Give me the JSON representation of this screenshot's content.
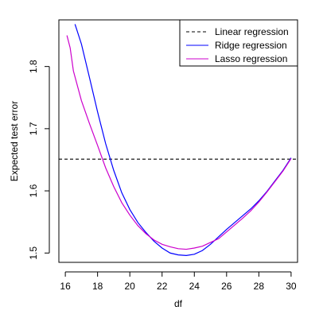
{
  "chart_data": {
    "type": "line",
    "title": "",
    "xlabel": "df",
    "ylabel": "Expected test error",
    "xlim": [
      15.6,
      30.4
    ],
    "ylim": [
      1.485,
      1.875
    ],
    "xticks": [
      16,
      18,
      20,
      22,
      24,
      26,
      28,
      30
    ],
    "yticks": [
      1.5,
      1.6,
      1.7,
      1.8
    ],
    "grid": false,
    "legend_position": "top-right",
    "series": [
      {
        "name": "Linear regression",
        "color": "#000000",
        "dash": "dashed",
        "x": [
          15.6,
          30.4
        ],
        "y": [
          1.651,
          1.651
        ]
      },
      {
        "name": "Ridge regression",
        "color": "#0000ff",
        "dash": "solid",
        "x": [
          16.6,
          17.0,
          17.5,
          18.0,
          18.5,
          19.0,
          19.5,
          20.0,
          20.5,
          21.0,
          21.5,
          22.0,
          22.5,
          23.0,
          23.5,
          24.0,
          24.5,
          25.0,
          25.5,
          26.0,
          26.5,
          27.0,
          27.5,
          28.0,
          28.5,
          29.0,
          29.5,
          30.0
        ],
        "y": [
          1.868,
          1.836,
          1.782,
          1.727,
          1.676,
          1.633,
          1.597,
          1.57,
          1.549,
          1.533,
          1.519,
          1.508,
          1.5,
          1.497,
          1.496,
          1.498,
          1.504,
          1.514,
          1.526,
          1.538,
          1.549,
          1.56,
          1.571,
          1.584,
          1.599,
          1.616,
          1.633,
          1.653
        ]
      },
      {
        "name": "Lasso regression",
        "color": "#cc00cc",
        "dash": "solid",
        "x": [
          16.1,
          16.3,
          16.5,
          17.0,
          17.5,
          18.0,
          18.5,
          19.0,
          19.5,
          20.0,
          20.5,
          21.0,
          21.5,
          22.0,
          22.5,
          23.0,
          23.5,
          24.0,
          24.5,
          25.0,
          25.5,
          26.0,
          26.5,
          27.0,
          27.5,
          28.0,
          28.5,
          29.0,
          29.5,
          30.0
        ],
        "y": [
          1.85,
          1.83,
          1.793,
          1.745,
          1.708,
          1.673,
          1.637,
          1.607,
          1.581,
          1.561,
          1.544,
          1.531,
          1.521,
          1.514,
          1.51,
          1.507,
          1.506,
          1.508,
          1.511,
          1.517,
          1.523,
          1.534,
          1.545,
          1.556,
          1.568,
          1.582,
          1.598,
          1.615,
          1.632,
          1.652
        ]
      }
    ]
  }
}
